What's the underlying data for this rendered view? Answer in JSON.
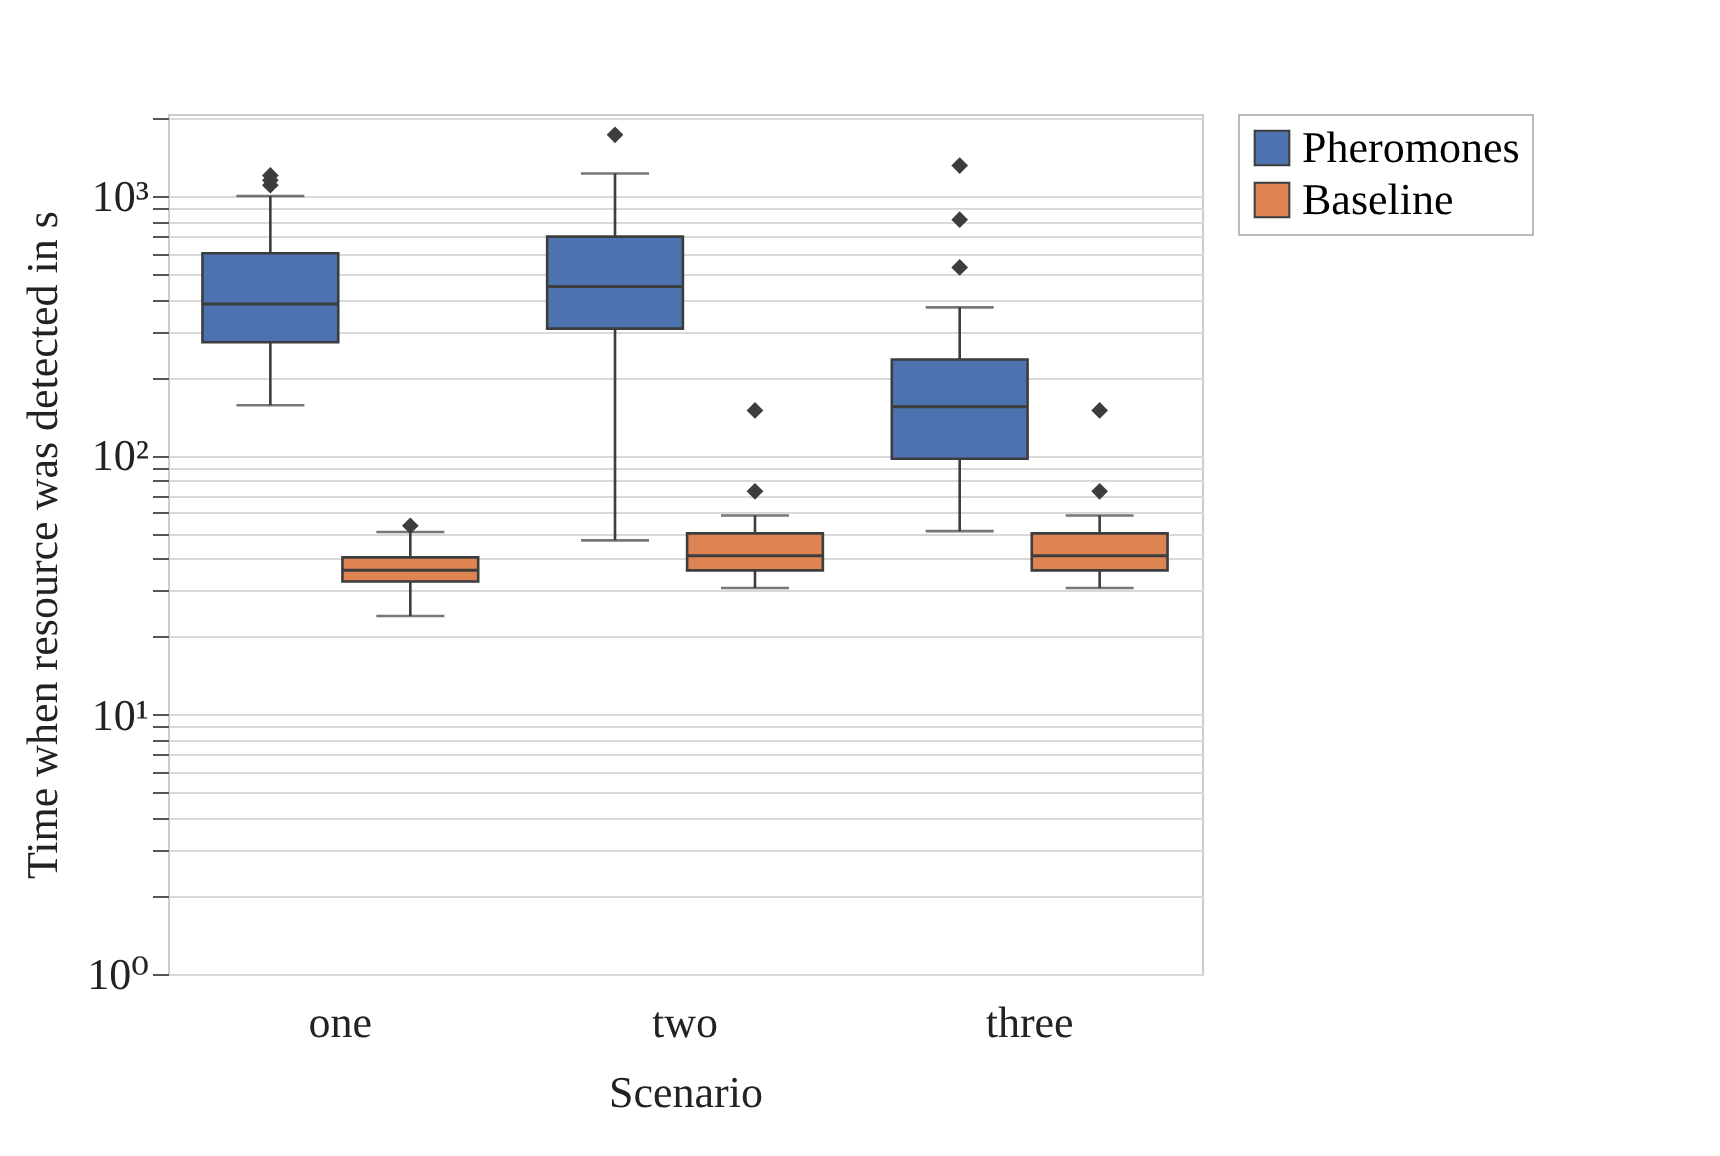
{
  "chart_data": {
    "type": "box",
    "xlabel": "Scenario",
    "ylabel": "Time when resource was detected in s",
    "categories": [
      "one",
      "two",
      "three"
    ],
    "series": [
      {
        "name": "Pheromones",
        "color": "#4c72b0",
        "boxes": [
          {
            "low": 156,
            "q1": 273,
            "median": 383,
            "q3": 601,
            "high": 1000,
            "outliers": [
              1100,
              1150,
              1200
            ]
          },
          {
            "low": 47,
            "q1": 308,
            "median": 448,
            "q3": 697,
            "high": 1220,
            "outliers": [
              1720
            ]
          },
          {
            "low": 51,
            "q1": 97,
            "median": 154,
            "q3": 234,
            "high": 372,
            "outliers": [
              530,
              810,
              1310
            ]
          }
        ]
      },
      {
        "name": "Baseline",
        "color": "#dd8452",
        "boxes": [
          {
            "low": 24,
            "q1": 32.6,
            "median": 36,
            "q3": 40.4,
            "high": 50.6,
            "outliers": [
              53.5
            ]
          },
          {
            "low": 30.8,
            "q1": 36,
            "median": 41,
            "q3": 50,
            "high": 58.6,
            "outliers": [
              72.6,
              149
            ]
          },
          {
            "low": 30.8,
            "q1": 36,
            "median": 41,
            "q3": 50,
            "high": 58.6,
            "outliers": [
              72.6,
              149
            ]
          }
        ]
      }
    ],
    "log": "y",
    "ylim": [
      1,
      2070
    ],
    "yticks": [
      {
        "value": 1,
        "label": "10⁰"
      },
      {
        "value": 2,
        "label": null
      },
      {
        "value": 3,
        "label": null
      },
      {
        "value": 4,
        "label": null
      },
      {
        "value": 5,
        "label": null
      },
      {
        "value": 6,
        "label": null
      },
      {
        "value": 7,
        "label": null
      },
      {
        "value": 8,
        "label": null
      },
      {
        "value": 9,
        "label": null
      },
      {
        "value": 10,
        "label": "10¹"
      },
      {
        "value": 20,
        "label": null
      },
      {
        "value": 30,
        "label": null
      },
      {
        "value": 40,
        "label": null
      },
      {
        "value": 50,
        "label": null
      },
      {
        "value": 60,
        "label": null
      },
      {
        "value": 70,
        "label": null
      },
      {
        "value": 80,
        "label": null
      },
      {
        "value": 90,
        "label": null
      },
      {
        "value": 100,
        "label": "10²"
      },
      {
        "value": 200,
        "label": null
      },
      {
        "value": 300,
        "label": null
      },
      {
        "value": 400,
        "label": null
      },
      {
        "value": 500,
        "label": null
      },
      {
        "value": 600,
        "label": null
      },
      {
        "value": 700,
        "label": null
      },
      {
        "value": 800,
        "label": null
      },
      {
        "value": 900,
        "label": null
      },
      {
        "value": 1000,
        "label": "10³"
      },
      {
        "value": 2000,
        "label": null
      }
    ],
    "grid": "y",
    "legend": "top right",
    "marker": "diamond"
  }
}
